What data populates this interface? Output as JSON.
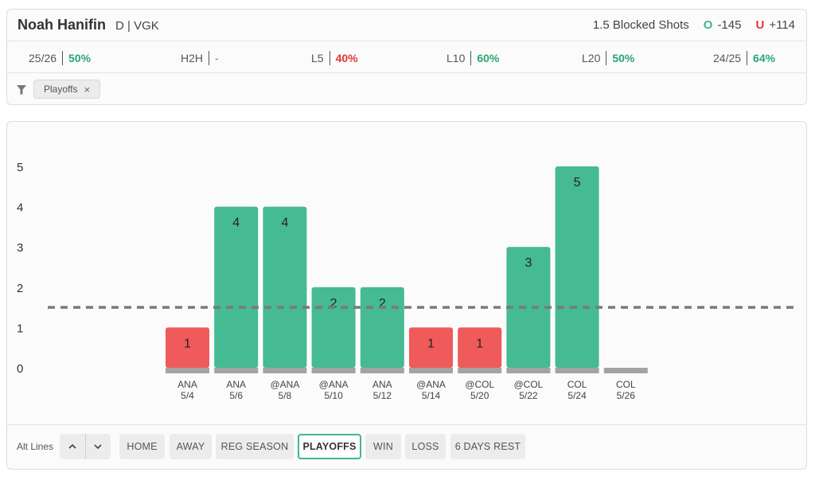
{
  "player": {
    "name": "Noah Hanifin",
    "meta": "D | VGK"
  },
  "prop": {
    "line_label": "1.5 Blocked Shots",
    "over_icon": "O",
    "over_odds": "-145",
    "under_icon": "U",
    "under_odds": "+114"
  },
  "stats": [
    {
      "label": "25/26",
      "value": "50%",
      "color": "green"
    },
    {
      "label": "H2H",
      "value": "-",
      "color": "none"
    },
    {
      "label": "L5",
      "value": "40%",
      "color": "red"
    },
    {
      "label": "L10",
      "value": "60%",
      "color": "green"
    },
    {
      "label": "L20",
      "value": "50%",
      "color": "green"
    },
    {
      "label": "24/25",
      "value": "64%",
      "color": "green"
    }
  ],
  "filter": {
    "chip_label": "Playoffs",
    "chip_close": "×"
  },
  "chart_data": {
    "type": "bar",
    "categories": [
      "ANA 5/4",
      "ANA 5/6",
      "@ANA 5/8",
      "@ANA 5/10",
      "ANA 5/12",
      "@ANA 5/14",
      "@COL 5/20",
      "@COL 5/22",
      "COL 5/24",
      "COL 5/26"
    ],
    "opponents": [
      "ANA",
      "ANA",
      "@ANA",
      "@ANA",
      "ANA",
      "@ANA",
      "@COL",
      "@COL",
      "COL",
      "COL"
    ],
    "dates": [
      "5/4",
      "5/6",
      "5/8",
      "5/10",
      "5/12",
      "5/14",
      "5/20",
      "5/22",
      "5/24",
      "5/26"
    ],
    "values": [
      1,
      4,
      4,
      2,
      2,
      1,
      1,
      3,
      5,
      null
    ],
    "line": 1.5,
    "ylim": [
      0,
      5
    ],
    "yticks": [
      0,
      1,
      2,
      3,
      4,
      5
    ],
    "colors": {
      "over": "#46ba92",
      "under": "#ef5a5a",
      "base": "#a3a3a3",
      "line": "#7a7a7a"
    }
  },
  "controls": {
    "alt_lines_label": "Alt Lines",
    "up_icon": "^",
    "down_icon": "v",
    "buttons": [
      {
        "label": "HOME",
        "active": false
      },
      {
        "label": "AWAY",
        "active": false
      },
      {
        "label": "REG SEASON",
        "active": false
      },
      {
        "label": "PLAYOFFS",
        "active": true
      },
      {
        "label": "WIN",
        "active": false
      },
      {
        "label": "LOSS",
        "active": false
      },
      {
        "label": "6 DAYS REST",
        "active": false
      }
    ]
  }
}
